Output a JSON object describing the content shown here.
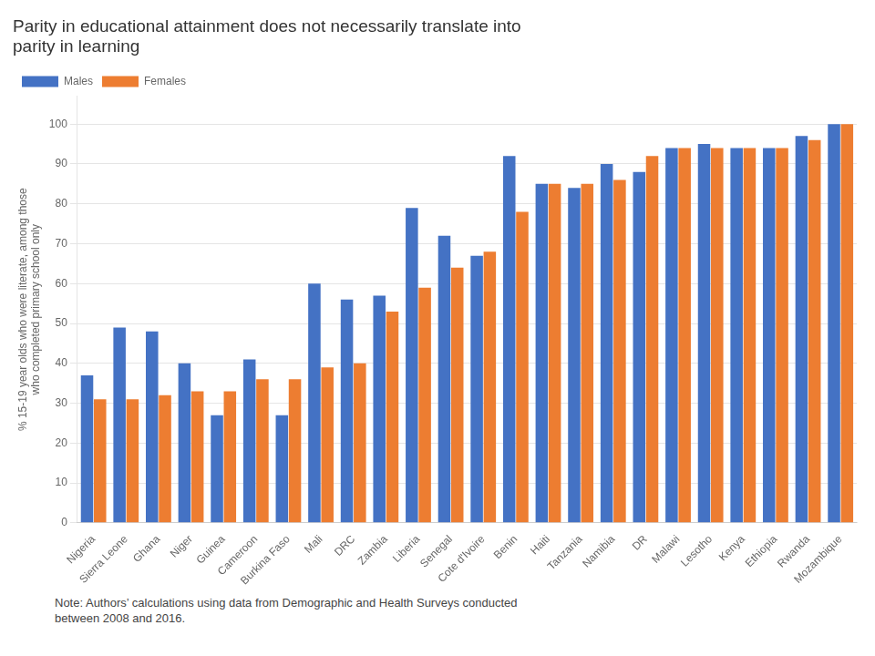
{
  "chart_data": {
    "type": "bar",
    "title": "Parity in educational attainment does not necessarily translate into\nparity in learning",
    "ylabel": "% 15-19 year olds who were literate, among those\nwho completed primary school only",
    "annotations": [
      "Note: Authors’ calculations using data from Demographic and Health Surveys conducted\nbetween 2008 and 2016."
    ],
    "categories": [
      "Nigeria",
      "Sierra Leone",
      "Ghana",
      "Niger",
      "Guinea",
      "Cameroon",
      "Burkina Faso",
      "Mali",
      "DRC",
      "Zambia",
      "Liberia",
      "Senegal",
      "Cote d'Ivoire",
      "Benin",
      "Haiti",
      "Tanzania",
      "Namibia",
      "DR",
      "Malawi",
      "Lesotho",
      "Kenya",
      "Ethiopia",
      "Rwanda",
      "Mozambique"
    ],
    "series": [
      {
        "name": "Males",
        "color": "#4472C4",
        "values": [
          37,
          49,
          48,
          40,
          27,
          41,
          27,
          60,
          56,
          57,
          79,
          72,
          67,
          92,
          85,
          84,
          90,
          88,
          94,
          95,
          94,
          94,
          97,
          100
        ]
      },
      {
        "name": "Females",
        "color": "#ED7D31",
        "values": [
          31,
          31,
          32,
          33,
          33,
          36,
          36,
          39,
          40,
          53,
          59,
          64,
          68,
          78,
          85,
          85,
          86,
          92,
          94,
          94,
          94,
          94,
          96,
          100
        ]
      }
    ],
    "ylim": [
      0,
      107
    ],
    "yticks": [
      0,
      10,
      20,
      30,
      40,
      50,
      60,
      70,
      80,
      90,
      100
    ],
    "grid": true,
    "legend": "upper left"
  }
}
